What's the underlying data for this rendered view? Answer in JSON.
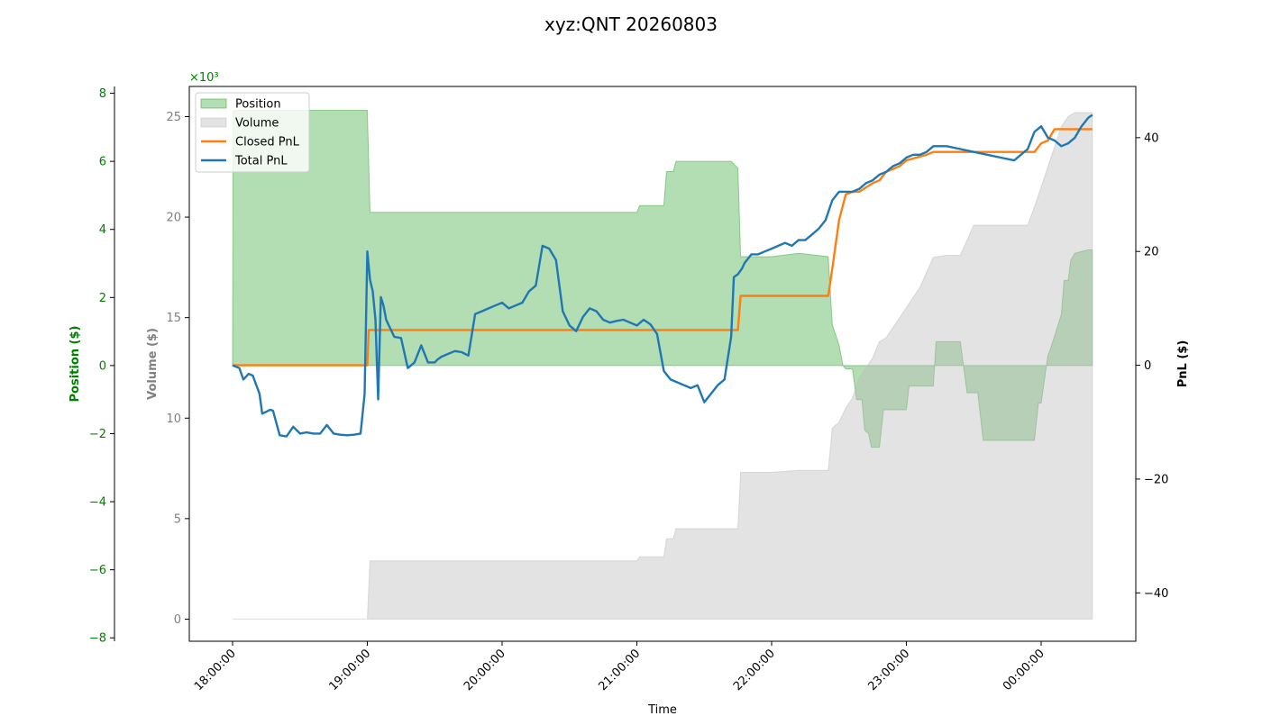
{
  "chart_data": {
    "type": "line",
    "title": "xyz:QNT 20260803",
    "xlabel": "Time",
    "x_ticks": [
      "18:00:00",
      "19:00:00",
      "20:00:00",
      "21:00:00",
      "22:00:00",
      "23:00:00",
      "00:00:00"
    ],
    "axes": {
      "position": {
        "label": "Position ($)",
        "ylim": [
          -8.1,
          8.2
        ],
        "ticks": [
          -8,
          -6,
          -4,
          -2,
          0,
          2,
          4,
          6,
          8
        ],
        "tick_labels": [
          "−8",
          "−6",
          "−4",
          "−2",
          "0",
          "2",
          "4",
          "6",
          "8"
        ],
        "color": "#008000"
      },
      "volume": {
        "label": "Volume ($)",
        "multiplier": "×10³",
        "ylim": [
          -1.1,
          26.5
        ],
        "ticks": [
          0,
          5,
          10,
          15,
          20,
          25
        ],
        "tick_labels": [
          "0",
          "5",
          "10",
          "15",
          "20",
          "25"
        ],
        "color": "#808080"
      },
      "pnl": {
        "label": "PnL ($)",
        "ylim": [
          -48.5,
          49
        ],
        "ticks": [
          -40,
          -20,
          0,
          20,
          40
        ],
        "tick_labels": [
          "−40",
          "−20",
          "0",
          "20",
          "40"
        ],
        "color": "#000000"
      }
    },
    "legend": {
      "placement": "upper-left",
      "entries": [
        "Position",
        "Volume",
        "Closed PnL",
        "Total PnL"
      ]
    },
    "colors": {
      "position_fill": "#2ca02c",
      "volume_fill": "#bdbdbd",
      "closed_pnl": "#ff7f0e",
      "total_pnl": "#1f77b4"
    },
    "series": [
      {
        "name": "Position",
        "kind": "area",
        "axis": "position",
        "x_hours": [
          0,
          0.005,
          1.0,
          1.02,
          1.03,
          2.0,
          3.0,
          3.02,
          3.2,
          3.22,
          3.27,
          3.29,
          3.4,
          3.7,
          3.75,
          3.77,
          3.9,
          4.0,
          4.2,
          4.42,
          4.45,
          4.5,
          4.53,
          4.55,
          4.6,
          4.63,
          4.67,
          4.69,
          4.72,
          4.74,
          4.8,
          4.83,
          5.0,
          5.02,
          5.05,
          5.1,
          5.2,
          5.22,
          5.3,
          5.4,
          5.45,
          5.53,
          5.57,
          5.64,
          5.66,
          5.95,
          5.98,
          6.0,
          6.05,
          6.07,
          6.15,
          6.17,
          6.2,
          6.22,
          6.25,
          6.35,
          6.38
        ],
        "y": [
          0,
          7.5,
          7.5,
          4.5,
          4.5,
          4.5,
          4.5,
          4.7,
          4.7,
          5.7,
          5.7,
          6.0,
          6.0,
          6.0,
          5.8,
          3.2,
          3.2,
          3.2,
          3.3,
          3.2,
          1.2,
          0.6,
          0.0,
          -0.1,
          -0.1,
          -1.0,
          -1.0,
          -1.9,
          -2.0,
          -2.4,
          -2.4,
          -1.3,
          -1.3,
          -0.6,
          -0.6,
          -0.6,
          -0.6,
          0.7,
          0.7,
          0.7,
          -0.8,
          -0.8,
          -2.2,
          -2.2,
          -2.2,
          -2.2,
          -1.1,
          -1.1,
          0.3,
          0.5,
          1.5,
          2.5,
          2.5,
          3.1,
          3.3,
          3.4,
          3.4
        ]
      },
      {
        "name": "Volume",
        "kind": "area",
        "axis": "volume",
        "unit_scale": "thousands",
        "x_hours": [
          0,
          1.0,
          1.02,
          1.3,
          2.0,
          2.5,
          3.0,
          3.02,
          3.2,
          3.22,
          3.27,
          3.29,
          3.5,
          3.75,
          3.77,
          3.85,
          4.0,
          4.2,
          4.42,
          4.45,
          4.5,
          4.55,
          4.6,
          4.65,
          4.7,
          4.75,
          4.8,
          4.85,
          4.9,
          5.0,
          5.1,
          5.2,
          5.3,
          5.4,
          5.5,
          5.6,
          5.7,
          5.8,
          5.9,
          5.95,
          6.0,
          6.05,
          6.1,
          6.15,
          6.2,
          6.25,
          6.3,
          6.38
        ],
        "y": [
          0,
          0,
          2.9,
          2.9,
          2.9,
          2.9,
          2.9,
          3.1,
          3.1,
          4.0,
          4.0,
          4.5,
          4.5,
          4.5,
          7.3,
          7.3,
          7.3,
          7.4,
          7.4,
          9.5,
          9.8,
          10.5,
          11.0,
          12.0,
          12.5,
          13.0,
          13.8,
          14.0,
          14.5,
          15.5,
          16.5,
          18.0,
          18.1,
          18.1,
          19.6,
          19.6,
          19.6,
          19.6,
          19.6,
          20.5,
          21.5,
          22.5,
          23.5,
          24.5,
          25.0,
          25.2,
          25.2,
          25.2
        ]
      },
      {
        "name": "Closed PnL",
        "kind": "line",
        "axis": "pnl",
        "x_hours": [
          0,
          1.0,
          1.01,
          2.0,
          3.0,
          3.75,
          3.77,
          4.42,
          4.45,
          4.5,
          4.55,
          4.6,
          4.65,
          4.75,
          4.8,
          4.85,
          4.95,
          5.0,
          5.15,
          5.2,
          5.3,
          5.6,
          5.95,
          6.0,
          6.05,
          6.1,
          6.38
        ],
        "y": [
          0,
          0,
          6.2,
          6.2,
          6.2,
          6.2,
          12.2,
          12.2,
          17.0,
          25.5,
          30.0,
          30.5,
          30.5,
          32.0,
          32.5,
          34.0,
          35.0,
          36.0,
          37.0,
          37.5,
          37.5,
          37.5,
          37.5,
          39.0,
          39.5,
          41.5,
          41.5
        ]
      },
      {
        "name": "Total PnL",
        "kind": "line",
        "axis": "pnl",
        "x_hours": [
          0,
          0.05,
          0.08,
          0.12,
          0.15,
          0.2,
          0.22,
          0.28,
          0.3,
          0.35,
          0.4,
          0.45,
          0.5,
          0.55,
          0.6,
          0.65,
          0.7,
          0.75,
          0.8,
          0.85,
          0.9,
          0.95,
          0.98,
          1.0,
          1.02,
          1.04,
          1.06,
          1.08,
          1.1,
          1.12,
          1.14,
          1.16,
          1.2,
          1.25,
          1.3,
          1.35,
          1.4,
          1.45,
          1.5,
          1.52,
          1.55,
          1.6,
          1.65,
          1.7,
          1.75,
          1.8,
          1.85,
          1.9,
          1.95,
          2.0,
          2.05,
          2.1,
          2.15,
          2.2,
          2.25,
          2.3,
          2.35,
          2.4,
          2.45,
          2.5,
          2.55,
          2.6,
          2.65,
          2.7,
          2.75,
          2.8,
          2.85,
          2.9,
          2.95,
          3.0,
          3.05,
          3.1,
          3.15,
          3.2,
          3.25,
          3.3,
          3.35,
          3.4,
          3.45,
          3.5,
          3.55,
          3.6,
          3.65,
          3.7,
          3.72,
          3.75,
          3.78,
          3.8,
          3.85,
          3.9,
          3.95,
          4.0,
          4.05,
          4.1,
          4.15,
          4.2,
          4.25,
          4.3,
          4.35,
          4.4,
          4.45,
          4.5,
          4.55,
          4.6,
          4.65,
          4.7,
          4.75,
          4.8,
          4.85,
          4.9,
          4.95,
          5.0,
          5.05,
          5.1,
          5.15,
          5.2,
          5.3,
          5.4,
          5.5,
          5.6,
          5.7,
          5.8,
          5.9,
          5.95,
          6.0,
          6.05,
          6.1,
          6.15,
          6.2,
          6.25,
          6.3,
          6.35,
          6.38
        ],
        "y": [
          0,
          -0.5,
          -2.5,
          -1.5,
          -1.8,
          -5.0,
          -8.5,
          -7.8,
          -8.0,
          -12.3,
          -12.5,
          -10.8,
          -12.0,
          -11.8,
          -12.0,
          -12.0,
          -10.5,
          -12.0,
          -12.2,
          -12.3,
          -12.2,
          -12.0,
          -5.0,
          20.0,
          15.0,
          13.0,
          8.0,
          -6.0,
          12.0,
          10.5,
          8.0,
          7.0,
          5.0,
          4.8,
          -0.5,
          0.5,
          3.5,
          0.5,
          0.5,
          1.0,
          1.5,
          2.0,
          2.5,
          2.3,
          1.7,
          9.0,
          9.5,
          10.0,
          10.5,
          11.0,
          10.0,
          10.5,
          11.0,
          13.0,
          14.0,
          21.0,
          20.5,
          18.5,
          9.5,
          7.0,
          6.0,
          8.5,
          10.0,
          9.5,
          8.0,
          7.5,
          7.8,
          8.0,
          7.5,
          7.0,
          8.0,
          7.2,
          5.5,
          -1.0,
          -2.5,
          -3.0,
          -3.5,
          -4.0,
          -3.5,
          -6.5,
          -5.0,
          -3.5,
          -2.5,
          5.0,
          15.5,
          16.0,
          17.0,
          18.0,
          19.5,
          19.5,
          20.0,
          20.5,
          21.0,
          21.5,
          21.0,
          22.0,
          22.0,
          23.0,
          24.0,
          25.5,
          29.0,
          30.5,
          30.5,
          30.5,
          31.0,
          32.0,
          32.5,
          33.5,
          34.0,
          35.0,
          35.5,
          36.5,
          37.0,
          37.0,
          37.5,
          38.5,
          38.5,
          38.0,
          37.5,
          37.0,
          36.5,
          36.0,
          38.0,
          41.0,
          42.0,
          40.0,
          39.5,
          38.5,
          39.0,
          40.0,
          42.0,
          43.5,
          44.0
        ]
      }
    ]
  }
}
